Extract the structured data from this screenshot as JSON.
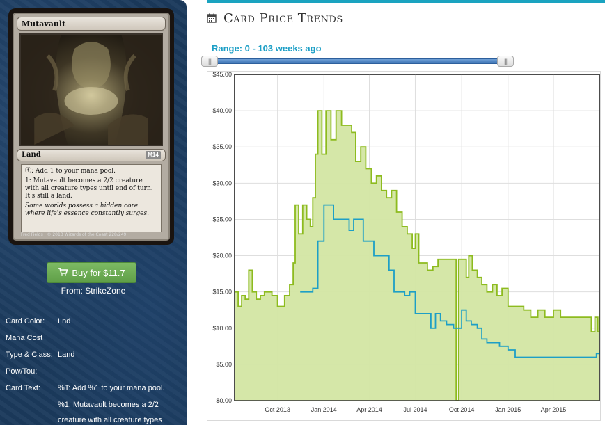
{
  "card": {
    "name": "Mutavault",
    "type_line": "Land",
    "set_symbol": "M14",
    "rules_1": "ⓣ: Add 1 to your mana pool.",
    "rules_2": "1: Mutavault becomes a 2/2 creature with all creature types until end of turn. It's still a land.",
    "flavor": "Some worlds possess a hidden core where life's essence constantly surges.",
    "footer": "Fred Fields · © 2013 Wizards of the Coast 228/249"
  },
  "buy": {
    "label": "Buy for $11.7",
    "from": "From: StrikeZone",
    "icon": "cart-icon"
  },
  "attributes": [
    {
      "label": "Card Color:",
      "value": "Lnd"
    },
    {
      "label": "Mana Cost",
      "value": ""
    },
    {
      "label": "Type & Class:",
      "value": "Land"
    },
    {
      "label": "Pow/Tou:",
      "value": ""
    },
    {
      "label": "Card Text:",
      "value": "%T: Add %1 to your mana pool."
    }
  ],
  "card_text_lines": [
    "%1: Mutavault becomes a 2/2",
    "creature with all creature types"
  ],
  "page": {
    "title": "Card Price Trends",
    "title_icon": "calendar-icon",
    "range_label": "Range: 0 - 103 weeks ago",
    "colors": {
      "accent": "#1aa3c0",
      "green_series": "#8dbb1f",
      "blue_series": "#1d9fc6",
      "area_fill": "#d3e6a3"
    }
  },
  "chart_data": {
    "type": "area",
    "ylim": [
      0,
      45
    ],
    "yticks": [
      "$0.00",
      "$5.00",
      "$10.00",
      "$15.00",
      "$20.00",
      "$25.00",
      "$30.00",
      "$35.00",
      "$40.00",
      "$45.00"
    ],
    "xticks": [
      "Oct 2013",
      "Jan 2014",
      "Apr 2014",
      "Jul 2014",
      "Oct 2014",
      "Jan 2015",
      "Apr 2015"
    ],
    "xlim": [
      "2013-07-08",
      "2015-07-01"
    ],
    "grid": true,
    "series": [
      {
        "style": "area",
        "points": [
          [
            "2013-07-08",
            15.0
          ],
          [
            "2013-07-15",
            13.0
          ],
          [
            "2013-07-22",
            14.5
          ],
          [
            "2013-07-29",
            14.0
          ],
          [
            "2013-08-05",
            18.0
          ],
          [
            "2013-08-12",
            15.0
          ],
          [
            "2013-08-20",
            14.0
          ],
          [
            "2013-08-28",
            14.5
          ],
          [
            "2013-09-05",
            15.0
          ],
          [
            "2013-09-20",
            14.5
          ],
          [
            "2013-10-01",
            13.0
          ],
          [
            "2013-10-15",
            14.5
          ],
          [
            "2013-10-25",
            16.0
          ],
          [
            "2013-11-01",
            19.0
          ],
          [
            "2013-11-05",
            27.0
          ],
          [
            "2013-11-12",
            23.0
          ],
          [
            "2013-11-20",
            27.0
          ],
          [
            "2013-11-28",
            25.0
          ],
          [
            "2013-12-05",
            24.0
          ],
          [
            "2013-12-10",
            28.0
          ],
          [
            "2013-12-15",
            34.0
          ],
          [
            "2013-12-20",
            40.0
          ],
          [
            "2013-12-28",
            34.0
          ],
          [
            "2014-01-05",
            40.0
          ],
          [
            "2014-01-15",
            36.0
          ],
          [
            "2014-01-25",
            40.0
          ],
          [
            "2014-02-05",
            38.0
          ],
          [
            "2014-02-15",
            38.0
          ],
          [
            "2014-02-25",
            37.0
          ],
          [
            "2014-03-05",
            33.0
          ],
          [
            "2014-03-15",
            35.0
          ],
          [
            "2014-03-25",
            32.0
          ],
          [
            "2014-04-05",
            30.0
          ],
          [
            "2014-04-15",
            31.0
          ],
          [
            "2014-04-25",
            29.0
          ],
          [
            "2014-05-05",
            28.0
          ],
          [
            "2014-05-15",
            29.0
          ],
          [
            "2014-05-25",
            26.0
          ],
          [
            "2014-06-05",
            24.0
          ],
          [
            "2014-06-15",
            23.0
          ],
          [
            "2014-06-25",
            21.0
          ],
          [
            "2014-07-01",
            23.0
          ],
          [
            "2014-07-08",
            19.0
          ],
          [
            "2014-07-15",
            19.0
          ],
          [
            "2014-07-25",
            18.0
          ],
          [
            "2014-08-05",
            18.5
          ],
          [
            "2014-08-15",
            19.5
          ],
          [
            "2014-08-25",
            19.5
          ],
          [
            "2014-09-05",
            19.5
          ],
          [
            "2014-09-15",
            19.5
          ],
          [
            "2014-09-20",
            0.0
          ],
          [
            "2014-09-25",
            19.5
          ],
          [
            "2014-10-05",
            19.5
          ],
          [
            "2014-10-10",
            17.0
          ],
          [
            "2014-10-15",
            20.0
          ],
          [
            "2014-10-22",
            18.0
          ],
          [
            "2014-11-01",
            17.0
          ],
          [
            "2014-11-10",
            16.0
          ],
          [
            "2014-11-20",
            15.0
          ],
          [
            "2014-12-01",
            16.0
          ],
          [
            "2014-12-10",
            14.5
          ],
          [
            "2014-12-20",
            15.5
          ],
          [
            "2015-01-01",
            13.0
          ],
          [
            "2015-01-15",
            13.0
          ],
          [
            "2015-02-01",
            12.5
          ],
          [
            "2015-02-15",
            11.5
          ],
          [
            "2015-03-01",
            12.5
          ],
          [
            "2015-03-15",
            11.5
          ],
          [
            "2015-04-01",
            12.5
          ],
          [
            "2015-04-15",
            11.5
          ],
          [
            "2015-05-01",
            11.5
          ],
          [
            "2015-06-01",
            11.5
          ],
          [
            "2015-06-15",
            9.5
          ],
          [
            "2015-06-22",
            11.5
          ],
          [
            "2015-06-28",
            9.5
          ],
          [
            "2015-07-01",
            12.0
          ]
        ]
      },
      {
        "style": "line",
        "points": [
          [
            "2013-11-15",
            15.0
          ],
          [
            "2013-12-01",
            15.0
          ],
          [
            "2013-12-10",
            15.5
          ],
          [
            "2013-12-20",
            22.0
          ],
          [
            "2014-01-01",
            27.0
          ],
          [
            "2014-01-10",
            27.0
          ],
          [
            "2014-01-20",
            25.0
          ],
          [
            "2014-02-10",
            25.0
          ],
          [
            "2014-02-20",
            23.5
          ],
          [
            "2014-03-01",
            25.0
          ],
          [
            "2014-03-10",
            25.0
          ],
          [
            "2014-03-20",
            22.0
          ],
          [
            "2014-04-01",
            22.0
          ],
          [
            "2014-04-10",
            20.0
          ],
          [
            "2014-04-30",
            20.0
          ],
          [
            "2014-05-10",
            18.0
          ],
          [
            "2014-05-20",
            15.0
          ],
          [
            "2014-06-01",
            15.0
          ],
          [
            "2014-06-10",
            14.5
          ],
          [
            "2014-06-20",
            15.0
          ],
          [
            "2014-07-01",
            12.0
          ],
          [
            "2014-07-20",
            12.0
          ],
          [
            "2014-08-01",
            10.0
          ],
          [
            "2014-08-10",
            12.0
          ],
          [
            "2014-08-20",
            11.0
          ],
          [
            "2014-09-01",
            10.5
          ],
          [
            "2014-09-15",
            10.0
          ],
          [
            "2014-10-01",
            12.5
          ],
          [
            "2014-10-10",
            11.0
          ],
          [
            "2014-10-20",
            10.5
          ],
          [
            "2014-11-01",
            10.0
          ],
          [
            "2014-11-10",
            8.5
          ],
          [
            "2014-11-20",
            8.0
          ],
          [
            "2014-12-01",
            8.0
          ],
          [
            "2014-12-15",
            7.5
          ],
          [
            "2015-01-01",
            7.0
          ],
          [
            "2015-01-15",
            6.0
          ],
          [
            "2015-03-01",
            6.0
          ],
          [
            "2015-05-01",
            6.0
          ],
          [
            "2015-06-01",
            6.0
          ],
          [
            "2015-06-25",
            6.5
          ],
          [
            "2015-07-01",
            7.0
          ]
        ]
      }
    ]
  }
}
